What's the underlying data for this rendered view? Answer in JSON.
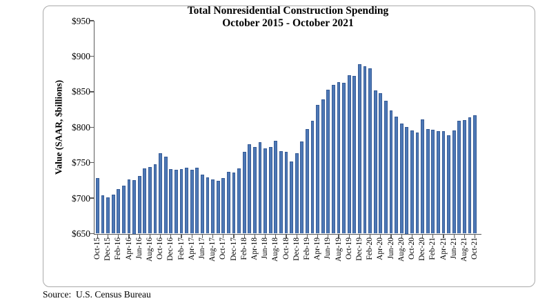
{
  "chart_data": {
    "type": "bar",
    "title": "Total Nonresidential Construction Spending",
    "subtitle": "October 2015 - October 2021",
    "xlabel": "",
    "ylabel": "Value (SAAR, $billions)",
    "ylim": [
      650,
      950
    ],
    "grid": false,
    "legend_position": "none",
    "bar_color": "#4d78b6",
    "bar_border_color": "#355a95",
    "axis_color": "#595959",
    "y_ticks": [
      {
        "label": "$950",
        "value": 950
      },
      {
        "label": "$900",
        "value": 900
      },
      {
        "label": "$850",
        "value": 850
      },
      {
        "label": "$800",
        "value": 800
      },
      {
        "label": "$750",
        "value": 750
      },
      {
        "label": "$700",
        "value": 700
      },
      {
        "label": "$650",
        "value": 650
      }
    ],
    "x_tick_step": 2,
    "x_tick_labels": [
      "Oct-15",
      "Dec-15",
      "Feb-16",
      "Apr-16",
      "Jun-16",
      "Aug-16",
      "Oct-16",
      "Dec-16",
      "Feb-17",
      "Apr-17",
      "Jun-17",
      "Aug-17",
      "Oct-17",
      "Dec-17",
      "Feb-18",
      "Apr-18",
      "Jun-18",
      "Aug-18",
      "Oct-18",
      "Dec-18",
      "Feb-19",
      "Apr-19",
      "Jun-19",
      "Aug-19",
      "Oct-19",
      "Dec-19",
      "Feb-20",
      "Apr-20",
      "Jun-20",
      "Aug-20",
      "Oct-20",
      "Dec-20",
      "Feb-21",
      "Apr-21",
      "Jun-21",
      "Aug-21",
      "Oct-21"
    ],
    "categories": [
      "Oct-15",
      "Nov-15",
      "Dec-15",
      "Jan-16",
      "Feb-16",
      "Mar-16",
      "Apr-16",
      "May-16",
      "Jun-16",
      "Jul-16",
      "Aug-16",
      "Sep-16",
      "Oct-16",
      "Nov-16",
      "Dec-16",
      "Jan-17",
      "Feb-17",
      "Mar-17",
      "Apr-17",
      "May-17",
      "Jun-17",
      "Jul-17",
      "Aug-17",
      "Sep-17",
      "Oct-17",
      "Nov-17",
      "Dec-17",
      "Jan-18",
      "Feb-18",
      "Mar-18",
      "Apr-18",
      "May-18",
      "Jun-18",
      "Jul-18",
      "Aug-18",
      "Sep-18",
      "Oct-18",
      "Nov-18",
      "Dec-18",
      "Jan-19",
      "Feb-19",
      "Mar-19",
      "Apr-19",
      "May-19",
      "Jun-19",
      "Jul-19",
      "Aug-19",
      "Sep-19",
      "Oct-19",
      "Nov-19",
      "Dec-19",
      "Jan-20",
      "Feb-20",
      "Mar-20",
      "Apr-20",
      "May-20",
      "Jun-20",
      "Jul-20",
      "Aug-20",
      "Sep-20",
      "Oct-20",
      "Nov-20",
      "Dec-20",
      "Jan-21",
      "Feb-21",
      "Mar-21",
      "Apr-21",
      "May-21",
      "Jun-21",
      "Jul-21",
      "Aug-21",
      "Sep-21",
      "Oct-21"
    ],
    "values": [
      728,
      704,
      701,
      705,
      713,
      718,
      726,
      725,
      731,
      742,
      744,
      748,
      763,
      758,
      741,
      740,
      741,
      743,
      740,
      743,
      733,
      729,
      726,
      724,
      728,
      737,
      736,
      742,
      765,
      776,
      772,
      779,
      770,
      772,
      781,
      766,
      765,
      752,
      763,
      780,
      797,
      809,
      831,
      839,
      853,
      860,
      863,
      862,
      873,
      872,
      889,
      886,
      883,
      852,
      848,
      837,
      824,
      815,
      805,
      800,
      795,
      792,
      811,
      797,
      796,
      794,
      794,
      789,
      795,
      809,
      810,
      814,
      817
    ]
  },
  "footer": {
    "source": "Source:  U.S. Census Bureau"
  }
}
